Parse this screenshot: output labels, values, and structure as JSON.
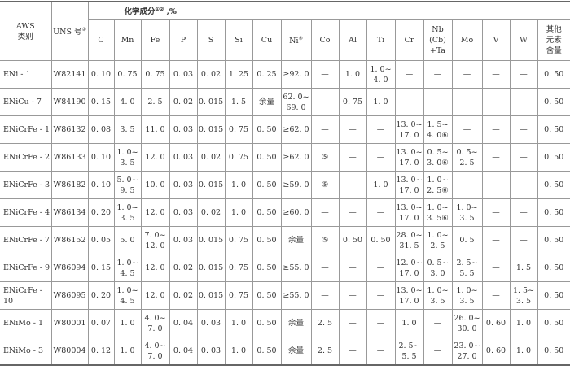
{
  "header": {
    "aws_class": "AWS\n类别",
    "uns": "UNS 号",
    "uns_note": "②",
    "group": "化学成分",
    "group_note": "①②",
    "group_unit": " ,%",
    "columns": [
      {
        "label": "C"
      },
      {
        "label": "Mn"
      },
      {
        "label": "Fe"
      },
      {
        "label": "P"
      },
      {
        "label": "S"
      },
      {
        "label": "Si"
      },
      {
        "label": "Cu"
      },
      {
        "label": "Ni",
        "note": "③"
      },
      {
        "label": "Co"
      },
      {
        "label": "Al"
      },
      {
        "label": "Ti"
      },
      {
        "label": "Cr"
      },
      {
        "label": "Nb\n(Cb)\n+Ta"
      },
      {
        "label": "Mo"
      },
      {
        "label": "V"
      },
      {
        "label": "W"
      },
      {
        "label": "其他\n元素\n含量"
      }
    ]
  },
  "rows": [
    [
      "ENi - 1",
      "W82141",
      "0. 10",
      "0. 75",
      "0. 75",
      "0. 03",
      "0. 02",
      "1. 25",
      "0. 25",
      "≥92. 0",
      "—",
      "1. 0",
      "1. 0~\n4. 0",
      "—",
      "—",
      "—",
      "—",
      "—",
      "0. 50"
    ],
    [
      "ENiCu - 7",
      "W84190",
      "0. 15",
      "4. 0",
      "2. 5",
      "0. 02",
      "0. 015",
      "1. 5",
      "余量",
      "62. 0~\n69. 0",
      "—",
      "0. 75",
      "1. 0",
      "—",
      "—",
      "—",
      "—",
      "—",
      "0. 50"
    ],
    [
      "ENiCrFe - 1",
      "W86132",
      "0. 08",
      "3. 5",
      "11. 0",
      "0. 03",
      "0. 015",
      "0. 75",
      "0. 50",
      "≥62. 0",
      "—",
      "—",
      "—",
      "13. 0~\n17. 0",
      "1. 5~\n4. 0⑥",
      "—",
      "—",
      "—",
      "0. 50"
    ],
    [
      "ENiCrFe - 2",
      "W86133",
      "0. 10",
      "1. 0~\n3. 5",
      "12. 0",
      "0. 03",
      "0. 02",
      "0. 75",
      "0. 50",
      "≥62. 0",
      "⑤",
      "—",
      "—",
      "13. 0~\n17. 0",
      "0. 5~\n3. 0⑥",
      "0. 5~\n2. 5",
      "—",
      "—",
      "0. 50"
    ],
    [
      "ENiCrFe - 3",
      "W86182",
      "0. 10",
      "5. 0~\n9. 5",
      "10. 0",
      "0. 03",
      "0. 015",
      "1. 0",
      "0. 50",
      "≥59. 0",
      "⑤",
      "—",
      "1. 0",
      "13. 0~\n17. 0",
      "1. 0~\n2. 5⑥",
      "—",
      "—",
      "—",
      "0. 50"
    ],
    [
      "ENiCrFe - 4",
      "W86134",
      "0. 20",
      "1. 0~\n3. 5",
      "12. 0",
      "0. 03",
      "0. 02",
      "1. 0",
      "0. 50",
      "≥60. 0",
      "—",
      "—",
      "—",
      "13. 0~\n17. 0",
      "1. 0~\n3. 5⑥",
      "1. 0~\n3. 5",
      "—",
      "—",
      "0. 50"
    ],
    [
      "ENiCrFe - 7",
      "W86152",
      "0. 05",
      "5. 0",
      "7. 0~\n12. 0",
      "0. 03",
      "0. 015",
      "0. 75",
      "0. 50",
      "余量",
      "⑤",
      "0. 50",
      "0. 50",
      "28. 0~\n31. 5",
      "1. 0~\n2. 5",
      "0. 5",
      "—",
      "—",
      "0. 50"
    ],
    [
      "ENiCrFe - 9",
      "W86094",
      "0. 15",
      "1. 0~\n4. 5",
      "12. 0",
      "0. 02",
      "0. 015",
      "0. 75",
      "0. 50",
      "≥55. 0",
      "—",
      "—",
      "—",
      "12. 0~\n17. 0",
      "0. 5~\n3. 0",
      "2. 5~\n5. 5",
      "—",
      "1. 5",
      "0. 50"
    ],
    [
      "ENiCrFe - 10",
      "W86095",
      "0. 20",
      "1. 0~\n4. 5",
      "12. 0",
      "0. 02",
      "0. 015",
      "0. 75",
      "0. 50",
      "≥55. 0",
      "—",
      "—",
      "—",
      "13. 0~\n17. 0",
      "1. 0~\n3. 5",
      "1. 0~\n3. 5",
      "—",
      "1. 5~\n3. 5",
      "0. 50"
    ],
    [
      "ENiMo - 1",
      "W80001",
      "0. 07",
      "1. 0",
      "4. 0~\n7. 0",
      "0. 04",
      "0. 03",
      "1. 0",
      "0. 50",
      "余量",
      "2. 5",
      "—",
      "—",
      "1. 0",
      "—",
      "26. 0~\n30. 0",
      "0. 60",
      "1. 0",
      "0. 50"
    ],
    [
      "ENiMo - 3",
      "W80004",
      "0. 12",
      "1. 0",
      "4. 0~\n7. 0",
      "0. 04",
      "0. 03",
      "1. 0",
      "0. 50",
      "余量",
      "2. 5",
      "—",
      "—",
      "2. 5~\n5. 5",
      "—",
      "23. 0~\n27. 0",
      "0. 60",
      "1. 0",
      "0. 50"
    ]
  ]
}
